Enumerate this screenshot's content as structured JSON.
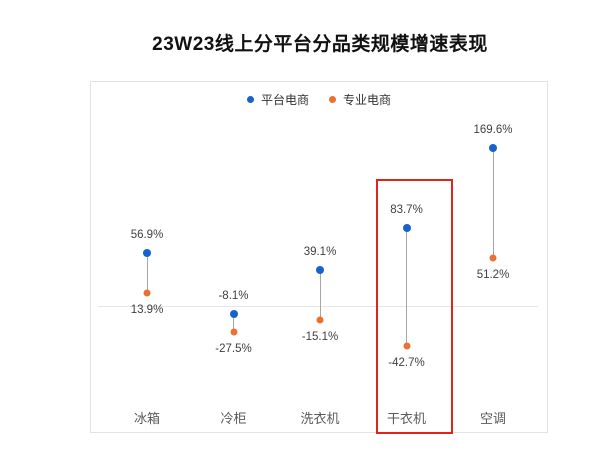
{
  "header": {
    "title": "23W23线上分平台分品类规模增速表现"
  },
  "chart_data": {
    "type": "scatter",
    "subtype": "dumbbell-lollipop",
    "title": "23W23线上分平台分品类规模增速表现",
    "categories": [
      "冰箱",
      "冷柜",
      "洗衣机",
      "干衣机",
      "空调"
    ],
    "series": [
      {
        "name": "平台电商",
        "color": "#1663ce",
        "values": [
          56.9,
          -8.1,
          39.1,
          83.7,
          169.6
        ],
        "labels": [
          "56.9%",
          "-8.1%",
          "39.1%",
          "83.7%",
          "169.6%"
        ],
        "label_position": "above"
      },
      {
        "name": "专业电商",
        "color": "#e97132",
        "values": [
          13.9,
          -27.5,
          -15.1,
          -42.7,
          51.2
        ],
        "labels": [
          "13.9%",
          "-27.5%",
          "-15.1%",
          "-42.7%",
          "51.2%"
        ],
        "label_position": "below"
      }
    ],
    "value_suffix": "%",
    "baseline": 0,
    "axes_hidden": true,
    "grid": false,
    "legend_position": "top-center",
    "connector_color": "#a6a6a6",
    "baseline_color": "#e6e6e6",
    "highlight": {
      "category": "干衣机",
      "box_color": "#e02418"
    }
  }
}
